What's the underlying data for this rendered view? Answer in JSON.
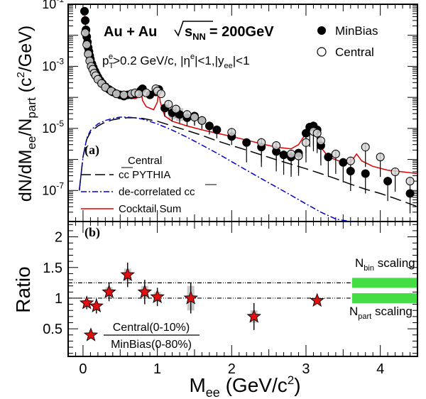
{
  "chart_data": [
    {
      "id": "top",
      "type": "scatter",
      "panel_label": "(a)",
      "title": "Au + Au",
      "energy_sqrt": "s",
      "energy_sub": "NN",
      "energy_value": "= 200GeV",
      "cuts": {
        "pt_p": "p",
        "pt_sub": "T",
        "pt_sup": "e",
        "pt_rest": ">0.2 GeV/c, |η",
        "eta_sup": "e",
        "eta_rest": "|<1,|y",
        "y_sub": "ee",
        "y_rest": "|<1"
      },
      "ylabel": "dN/dMee/Npart (c²/GeV)",
      "ylabel_parts": [
        "dN/dM",
        "ee",
        "/N",
        "part",
        " (c",
        "2",
        "/GeV)"
      ],
      "yscale": "log",
      "xlim": [
        -0.2,
        4.5
      ],
      "ylim_exp": [
        -8,
        -1
      ],
      "ytick_exp": [
        -1,
        -3,
        -5,
        -7
      ],
      "legend_markers": [
        {
          "name": "MinBias",
          "marker": "filled-circle"
        },
        {
          "name": "Central",
          "marker": "open-circle"
        }
      ],
      "legend_curves_header": "Central",
      "legend_curves": [
        {
          "name": "cc PYTHIA",
          "style": "long-dash",
          "color": "#000000"
        },
        {
          "name": "de-correlated cc",
          "style": "dash-dot",
          "color": "#0000cc"
        },
        {
          "name": "Cocktail Sum",
          "style": "solid",
          "color": "#e00000"
        }
      ],
      "series": [
        {
          "name": "MinBias",
          "marker": "filled-circle",
          "x": [
            0.02,
            0.03,
            0.04,
            0.05,
            0.06,
            0.07,
            0.08,
            0.09,
            0.1,
            0.12,
            0.14,
            0.16,
            0.18,
            0.2,
            0.23,
            0.26,
            0.3,
            0.35,
            0.4,
            0.45,
            0.5,
            0.55,
            0.6,
            0.65,
            0.7,
            0.75,
            0.78,
            0.8,
            0.9,
            0.98,
            1.02,
            1.1,
            1.2,
            1.3,
            1.4,
            1.5,
            1.6,
            1.7,
            1.8,
            2.0,
            2.2,
            2.4,
            2.6,
            2.7,
            2.8,
            2.9,
            3.0,
            3.05,
            3.1,
            3.15,
            3.2,
            3.3,
            3.5,
            3.6,
            3.8,
            4.1,
            4.4
          ],
          "y": [
            0.06,
            0.03,
            0.015,
            0.009,
            0.006,
            0.004,
            0.003,
            0.0022,
            0.0017,
            0.0012,
            0.0009,
            0.0007,
            0.00055,
            0.00045,
            0.00035,
            0.00028,
            0.00022,
            0.00018,
            0.00015,
            0.00013,
            0.00012,
            0.00011,
            0.00012,
            0.00012,
            0.00013,
            0.00014,
            0.00017,
            0.00019,
            0.00012,
            0.00015,
            0.00018,
            4.5e-05,
            3.2e-05,
            2.8e-05,
            2.2e-05,
            2.5e-05,
            1.8e-05,
            1.2e-05,
            9e-06,
            5.5e-06,
            3.5e-06,
            2.5e-06,
            1.8e-06,
            1.4e-06,
            1.2e-06,
            1.6e-06,
            7e-06,
            1.1e-05,
            1.2e-05,
            9e-06,
            2.8e-06,
            1.2e-06,
            8e-07,
            4.2e-07,
            3.5e-07,
            2e-07,
            8e-08
          ]
        },
        {
          "name": "Central",
          "marker": "open-circle",
          "x": [
            0.03,
            0.05,
            0.07,
            0.09,
            0.11,
            0.13,
            0.15,
            0.17,
            0.2,
            0.25,
            0.3,
            0.38,
            0.45,
            0.55,
            0.65,
            0.7,
            0.75,
            0.85,
            0.98,
            1.0,
            1.05,
            1.15,
            1.25,
            1.4,
            1.5,
            1.6,
            2.0,
            2.4,
            2.6,
            2.8,
            2.9,
            3.0,
            3.1,
            3.15,
            3.2,
            3.4,
            3.6,
            3.8,
            4.0,
            4.2,
            4.4
          ],
          "y": [
            0.012,
            0.005,
            0.0025,
            0.0015,
            0.001,
            0.0008,
            0.0006,
            0.0005,
            0.00038,
            0.00028,
            0.00021,
            0.00016,
            0.00013,
            0.00012,
            0.00013,
            0.00014,
            0.00013,
            0.00014,
            0.00019,
            0.00016,
            0.00013,
            6e-05,
            4.2e-05,
            2.8e-05,
            2.3e-05,
            1.8e-05,
            7.5e-06,
            3.5e-06,
            2.8e-06,
            1.5e-06,
            1.3e-06,
            3.5e-06,
            8e-06,
            7e-06,
            4e-06,
            1.5e-06,
            9e-07,
            2.5e-06,
            1.2e-06,
            4e-07,
            2e-07
          ]
        }
      ],
      "curves": [
        {
          "name": "Cocktail Sum",
          "x": [
            0.02,
            0.04,
            0.06,
            0.08,
            0.1,
            0.15,
            0.2,
            0.3,
            0.4,
            0.5,
            0.6,
            0.7,
            0.74,
            0.76,
            0.78,
            0.8,
            0.85,
            0.95,
            1.0,
            1.02,
            1.04,
            1.1,
            1.2,
            1.4,
            1.6,
            1.8,
            2.0,
            2.2,
            2.4,
            2.6,
            2.8,
            2.9,
            3.0,
            3.05,
            3.1,
            3.15,
            3.2,
            3.3,
            3.5,
            3.6,
            3.68,
            3.75,
            3.9,
            4.1,
            4.3,
            4.5
          ],
          "y": [
            0.06,
            0.012,
            0.004,
            0.002,
            0.0013,
            0.0007,
            0.00045,
            0.00025,
            0.00016,
            0.00012,
            0.0001,
            9e-05,
            0.0001,
            0.00015,
            0.00019,
            8e-05,
            5e-05,
            4e-05,
            7e-05,
            0.00016,
            7e-05,
            2.5e-05,
            1.7e-05,
            1.2e-05,
            9e-06,
            7e-06,
            5.5e-06,
            4.2e-06,
            3.2e-06,
            2.5e-06,
            2.2e-06,
            3e-06,
            7e-06,
            1.2e-05,
            1.3e-05,
            8e-06,
            2.5e-06,
            1.2e-06,
            8e-07,
            8e-07,
            1.5e-06,
            9e-07,
            6e-07,
            4.5e-07,
            4e-07,
            3.5e-07
          ]
        },
        {
          "name": "cc PYTHIA",
          "x": [
            -0.05,
            0.0,
            0.05,
            0.1,
            0.2,
            0.3,
            0.4,
            0.5,
            0.6,
            0.7,
            0.8,
            1.0,
            1.2,
            1.4,
            1.6,
            1.8,
            2.0,
            2.2,
            2.4,
            2.6,
            2.8,
            3.0,
            3.2,
            3.4,
            3.6,
            3.8,
            4.0,
            4.2,
            4.5
          ],
          "y": [
            1e-07,
            1.2e-06,
            4.5e-06,
            7.5e-06,
            1.2e-05,
            1.6e-05,
            1.9e-05,
            2.1e-05,
            2.2e-05,
            2.2e-05,
            2.1e-05,
            1.7e-05,
            1.2e-05,
            8.5e-06,
            6e-06,
            4e-06,
            2.8e-06,
            2e-06,
            1.4e-06,
            9.8e-07,
            7e-07,
            5e-07,
            3.5e-07,
            2.4e-07,
            1.6e-07,
            1.1e-07,
            8e-08,
            5.5e-08,
            3e-08
          ]
        },
        {
          "name": "de-correlated cc",
          "x": [
            -0.05,
            0.0,
            0.05,
            0.1,
            0.2,
            0.3,
            0.4,
            0.5,
            0.6,
            0.7,
            0.8,
            1.0,
            1.2,
            1.4,
            1.6,
            1.8,
            2.0,
            2.2,
            2.4,
            2.6,
            2.8,
            3.0,
            3.2,
            3.4,
            3.6,
            3.65
          ],
          "y": [
            1e-07,
            1.2e-06,
            4.8e-06,
            8.5e-06,
            1.4e-05,
            1.8e-05,
            2.1e-05,
            2.3e-05,
            2.3e-05,
            2.2e-05,
            2e-05,
            1.4e-05,
            8.8e-06,
            5.2e-06,
            2.9e-06,
            1.6e-06,
            8.5e-07,
            4.5e-07,
            2.4e-07,
            1.3e-07,
            7e-08,
            3.7e-08,
            2e-08,
            1.2e-08,
            9e-09,
            8e-09
          ]
        }
      ]
    },
    {
      "id": "bottom",
      "type": "scatter",
      "panel_label": "(b)",
      "ylabel": "Ratio",
      "xlabel": "Mee (GeV/c²)",
      "xlabel_parts": [
        "M",
        "ee",
        " (GeV/c",
        "2",
        ")"
      ],
      "xlim": [
        -0.2,
        4.5
      ],
      "ylim": [
        0.05,
        2.25
      ],
      "xticks": [
        0,
        1,
        2,
        3,
        4
      ],
      "yticks": [
        0.5,
        1,
        1.5,
        2
      ],
      "ytick_labels": [
        "0.5",
        "1",
        "1.5",
        "2"
      ],
      "reference_lines": [
        {
          "y": 1.25,
          "label_main": "N",
          "label_sub": "bin",
          "label_rest": " scaling"
        },
        {
          "y": 1.0,
          "label_main": "N",
          "label_sub": "part",
          "label_rest": " scaling"
        }
      ],
      "legend": {
        "numerator": "Central(0-10%)",
        "denominator": "MinBias(0-80%)",
        "marker": "red-star"
      },
      "series": [
        {
          "name": "Central(0-10%)/MinBias(0-80%)",
          "x": [
            0.05,
            0.18,
            0.35,
            0.6,
            0.83,
            1.0,
            1.45,
            2.3,
            3.15
          ],
          "y": [
            0.92,
            0.87,
            1.1,
            1.38,
            1.1,
            1.02,
            1.0,
            0.7,
            0.96
          ],
          "err": [
            0.1,
            0.12,
            0.15,
            0.2,
            0.2,
            0.15,
            0.25,
            0.22,
            0.05
          ],
          "sys": [
            0.05,
            0.05,
            0.08,
            0.1,
            0.1,
            0.08,
            0.2,
            0.1,
            0.05
          ]
        }
      ]
    }
  ],
  "colors": {
    "cocktail": "#e00000",
    "decorrelated": "#0000cc",
    "pythia": "#000000",
    "star": "#e01010",
    "band": "#44dd44",
    "sys_box": "#c8c8c8"
  }
}
